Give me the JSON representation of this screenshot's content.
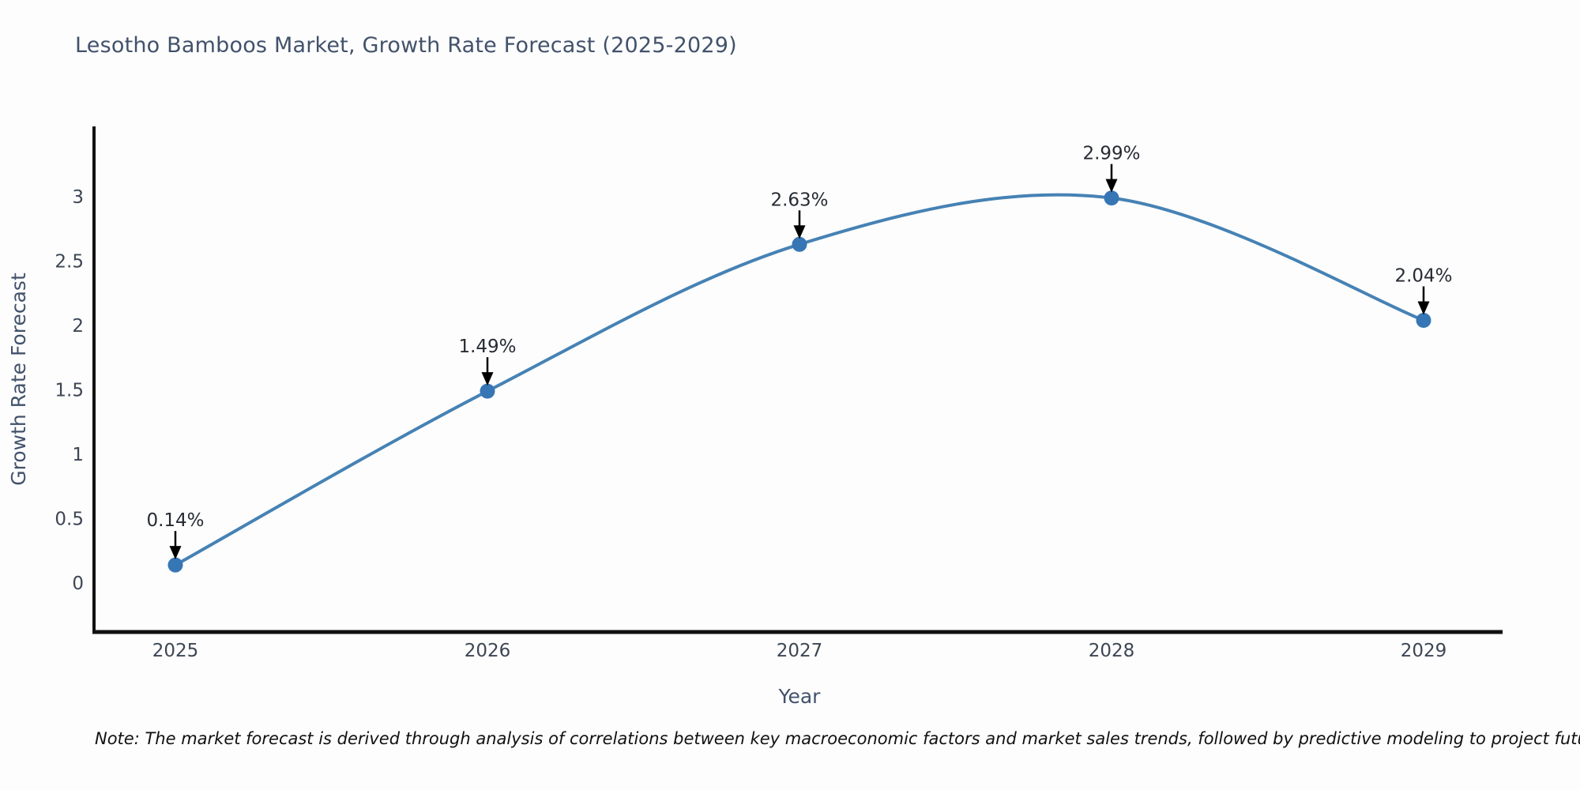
{
  "page": {
    "note": "Note: The market forecast is derived through analysis of correlations between key macroeconomic factors and market sales trends, followed by predictive modeling to project future sales"
  },
  "chart_data": {
    "type": "line",
    "title": "Lesotho Bamboos Market, Growth Rate Forecast (2025-2029)",
    "xlabel": "Year",
    "ylabel": "Growth Rate Forecast",
    "categories": [
      2025,
      2026,
      2027,
      2028,
      2029
    ],
    "series": [
      {
        "name": "Growth Rate Forecast",
        "values": [
          0.14,
          1.49,
          2.63,
          2.99,
          2.04
        ],
        "point_labels": [
          "0.14%",
          "1.49%",
          "2.63%",
          "2.99%",
          "2.04%"
        ]
      }
    ],
    "yticks": [
      0,
      0.5,
      1,
      1.5,
      2,
      2.5,
      3
    ],
    "ytick_labels": [
      "0",
      "0.5",
      "1",
      "1.5",
      "2",
      "2.5",
      "3"
    ],
    "xtick_labels": [
      "2025",
      "2026",
      "2027",
      "2028",
      "2029"
    ],
    "ylim": [
      -0.38,
      3.55
    ],
    "xlim": [
      2024.74,
      2029.25
    ],
    "grid": false,
    "legend": "none",
    "line_style": "smooth-spline",
    "annotations": "value labels with black down-arrows above each point",
    "colors": {
      "line": "#4682b4",
      "marker": "#3776b4",
      "annotation_text": "#262b33",
      "annotation_arrow": "#000000",
      "spine": "#111111",
      "title": "#42526b",
      "axis_title": "#42526b",
      "tick_label": "#3d4654",
      "note": "#111111",
      "background": "#fdfdfd"
    }
  }
}
